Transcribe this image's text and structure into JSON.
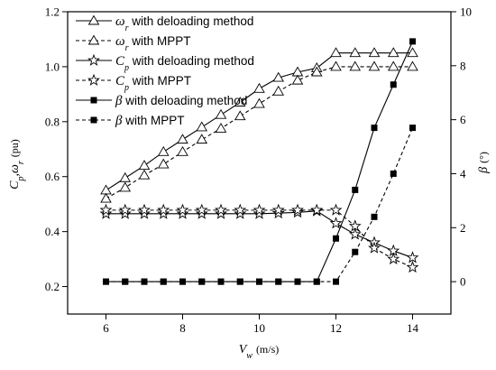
{
  "chart_data": {
    "type": "line",
    "x": [
      6,
      6.5,
      7,
      7.5,
      8,
      8.5,
      9,
      9.5,
      10,
      10.5,
      11,
      11.5,
      12,
      12.5,
      13,
      13.5,
      14
    ],
    "xlabel": {
      "symbol": "V",
      "sub": "w",
      "unit": "(m/s)"
    },
    "xlim": [
      5,
      15
    ],
    "xticks": [
      6,
      8,
      10,
      12,
      14
    ],
    "left_axis": {
      "label": {
        "symbol": "C",
        "sub": "p",
        "mid": ",ω",
        "sub2": "r",
        "unit": "(pu)"
      },
      "ylim": [
        0.1,
        1.2
      ],
      "ticks": [
        "0.2",
        "0.4",
        "0.6",
        "0.8",
        "1.0",
        "1.2"
      ]
    },
    "right_axis": {
      "label": {
        "symbol": "β",
        "unit": "(°)"
      },
      "ylim": [
        -1.2,
        10
      ],
      "ticks": [
        "0",
        "2",
        "4",
        "6",
        "8",
        "10"
      ]
    },
    "legend": {
      "position": "top-left"
    },
    "series": [
      {
        "name": "ω",
        "name_sub": "r",
        "name_suffix": " with deloading method",
        "axis": "left",
        "marker": "triangle",
        "line": "solid",
        "values": [
          0.55,
          0.595,
          0.64,
          0.69,
          0.735,
          0.78,
          0.825,
          0.87,
          0.92,
          0.96,
          0.98,
          0.995,
          1.05,
          1.05,
          1.05,
          1.05,
          1.05
        ]
      },
      {
        "name": "ω",
        "name_sub": "r",
        "name_suffix": " with MPPT",
        "axis": "left",
        "marker": "triangle",
        "line": "dashed",
        "values": [
          0.52,
          0.56,
          0.605,
          0.645,
          0.69,
          0.735,
          0.775,
          0.82,
          0.865,
          0.91,
          0.95,
          0.98,
          1.0,
          1.0,
          1.0,
          1.0,
          1.0
        ]
      },
      {
        "name": "C",
        "name_sub": "p",
        "name_suffix": " with deloading method",
        "axis": "left",
        "marker": "star",
        "line": "solid",
        "values": [
          0.465,
          0.465,
          0.465,
          0.465,
          0.465,
          0.465,
          0.465,
          0.465,
          0.465,
          0.467,
          0.47,
          0.475,
          0.43,
          0.39,
          0.36,
          0.33,
          0.305
        ]
      },
      {
        "name": "C",
        "name_sub": "p",
        "name_suffix": " with MPPT",
        "axis": "left",
        "marker": "star",
        "line": "dashed",
        "values": [
          0.478,
          0.478,
          0.478,
          0.478,
          0.478,
          0.478,
          0.478,
          0.478,
          0.478,
          0.478,
          0.478,
          0.478,
          0.478,
          0.42,
          0.34,
          0.3,
          0.27
        ]
      },
      {
        "name": "β",
        "name_sub": "",
        "name_suffix": " with deloading method",
        "axis": "right",
        "marker": "square",
        "line": "solid",
        "values": [
          0,
          0,
          0,
          0,
          0,
          0,
          0,
          0,
          0,
          0,
          0,
          0,
          1.6,
          3.4,
          5.7,
          7.3,
          8.9
        ]
      },
      {
        "name": "β",
        "name_sub": "",
        "name_suffix": " with MPPT",
        "axis": "right",
        "marker": "square",
        "line": "dashed",
        "values": [
          0,
          0,
          0,
          0,
          0,
          0,
          0,
          0,
          0,
          0,
          0,
          0,
          0,
          1.1,
          2.4,
          4.0,
          5.7
        ]
      }
    ]
  }
}
